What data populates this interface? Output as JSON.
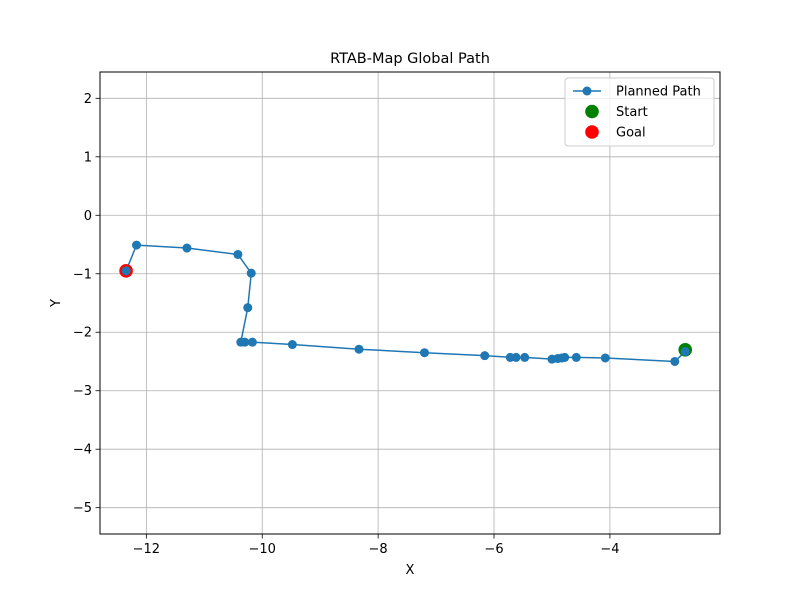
{
  "chart_data": {
    "type": "line",
    "title": "RTAB-Map Global Path",
    "xlabel": "X",
    "ylabel": "Y",
    "xlim": [
      -12.8,
      -2.1
    ],
    "ylim": [
      -5.45,
      2.45
    ],
    "xticks": [
      -12,
      -10,
      -8,
      -6,
      -4
    ],
    "yticks": [
      2,
      1,
      0,
      -1,
      -2,
      -3,
      -4,
      -5
    ],
    "grid": true,
    "legend": "top-right",
    "series": [
      {
        "name": "Planned Path",
        "kind": "line-marker",
        "color": "#1f77b4",
        "points": [
          [
            -2.7,
            -2.33
          ],
          [
            -2.88,
            -2.5
          ],
          [
            -4.08,
            -2.44
          ],
          [
            -4.58,
            -2.43
          ],
          [
            -4.78,
            -2.43
          ],
          [
            -4.83,
            -2.44
          ],
          [
            -4.9,
            -2.45
          ],
          [
            -5.0,
            -2.46
          ],
          [
            -5.47,
            -2.43
          ],
          [
            -5.62,
            -2.43
          ],
          [
            -5.72,
            -2.43
          ],
          [
            -6.16,
            -2.4
          ],
          [
            -7.2,
            -2.35
          ],
          [
            -8.33,
            -2.29
          ],
          [
            -9.48,
            -2.21
          ],
          [
            -10.17,
            -2.17
          ],
          [
            -10.3,
            -2.17
          ],
          [
            -10.37,
            -2.17
          ],
          [
            -10.25,
            -1.58
          ],
          [
            -10.19,
            -0.99
          ],
          [
            -10.42,
            -0.67
          ],
          [
            -11.3,
            -0.56
          ],
          [
            -12.17,
            -0.51
          ],
          [
            -12.35,
            -0.95
          ]
        ]
      },
      {
        "name": "Start",
        "kind": "scatter",
        "color": "#008000",
        "points": [
          [
            -2.7,
            -2.3
          ]
        ]
      },
      {
        "name": "Goal",
        "kind": "scatter",
        "color": "#ff0000",
        "points": [
          [
            -12.35,
            -0.95
          ]
        ]
      }
    ]
  }
}
